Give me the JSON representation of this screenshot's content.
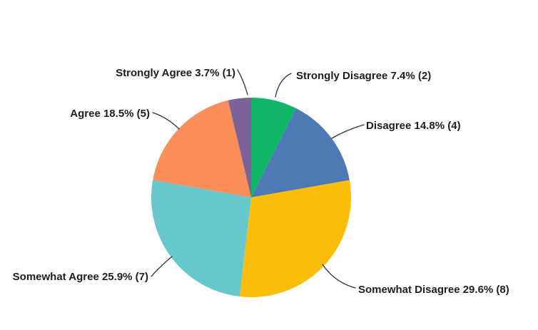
{
  "chart_data": {
    "type": "pie",
    "start_angle_deg": 0,
    "direction": "clockwise",
    "legend_position": "none",
    "label_style": "external-callouts",
    "background": "#ffffff",
    "label_text_color": "#1e1e1e",
    "leader_line_color": "#333333",
    "slices": [
      {
        "label": "Strongly Disagree",
        "percent": 7.4,
        "count": 2,
        "display": "Strongly Disagree 7.4% (2)",
        "color": "#10b667"
      },
      {
        "label": "Disagree",
        "percent": 14.8,
        "count": 4,
        "display": "Disagree 14.8% (4)",
        "color": "#4d79b5"
      },
      {
        "label": "Somewhat Disagree",
        "percent": 29.6,
        "count": 8,
        "display": "Somewhat Disagree 29.6% (8)",
        "color": "#f9bd0a"
      },
      {
        "label": "Somewhat Agree",
        "percent": 25.9,
        "count": 7,
        "display": "Somewhat Agree 25.9% (7)",
        "color": "#66c8cc"
      },
      {
        "label": "Agree",
        "percent": 18.5,
        "count": 5,
        "display": "Agree 18.5% (5)",
        "color": "#fa8e59"
      },
      {
        "label": "Strongly Agree",
        "percent": 3.7,
        "count": 1,
        "display": "Strongly Agree 3.7% (1)",
        "color": "#7b6399"
      }
    ]
  }
}
